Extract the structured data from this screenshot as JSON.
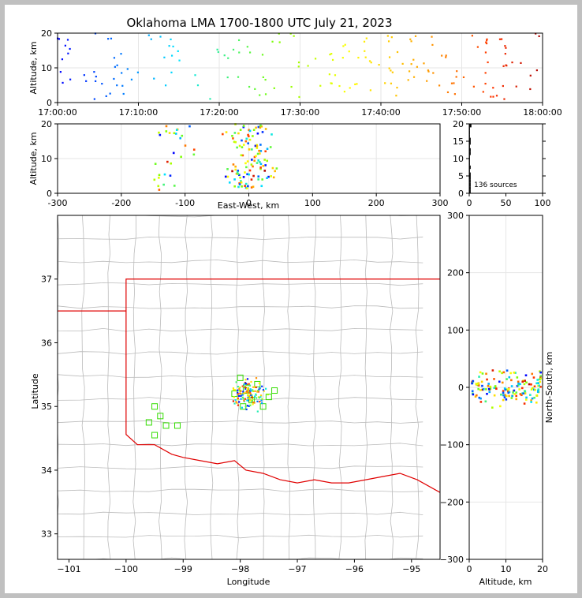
{
  "chart_data": [
    {
      "panel": "altitude-time",
      "type": "scatter",
      "title": "Oklahoma LMA 1700-1800 UTC July 21, 2023",
      "xlabel": "",
      "ylabel": "Altitude, km",
      "x_ticks": [
        "17:00:00",
        "17:10:00",
        "17:20:00",
        "17:30:00",
        "17:40:00",
        "17:50:00",
        "18:00:00"
      ],
      "y_ticks": [
        "0",
        "10",
        "20"
      ],
      "xlim_minutes": [
        0,
        60
      ],
      "ylim": [
        0,
        20
      ],
      "grid": true,
      "color_scale": "time (blue to red)"
    },
    {
      "panel": "altitude-east-west",
      "type": "scatter",
      "xlabel": "East-West, km",
      "ylabel": "Altitude, km",
      "x_ticks": [
        "-300",
        "-200",
        "-100",
        "0",
        "100",
        "200",
        "300"
      ],
      "y_ticks": [
        "0",
        "10",
        "20"
      ],
      "xlim": [
        -300,
        300
      ],
      "ylim": [
        0,
        20
      ],
      "grid": true
    },
    {
      "panel": "altitude-histogram",
      "type": "bar",
      "annotation": "136 sources",
      "x_ticks": [
        "0",
        "50",
        "100"
      ],
      "y_ticks": [
        "0",
        "5",
        "10",
        "15",
        "20"
      ],
      "xlim": [
        0,
        100
      ],
      "ylim": [
        0,
        20
      ]
    },
    {
      "panel": "plan-view-map",
      "type": "scatter",
      "xlabel": "Longitude",
      "ylabel": "Latitude",
      "x_ticks": [
        "−101",
        "−100",
        "−99",
        "−98",
        "−97",
        "−96",
        "−95"
      ],
      "y_ticks": [
        "33",
        "34",
        "35",
        "36",
        "37"
      ],
      "xlim": [
        -101.2,
        -94.5
      ],
      "ylim": [
        32.6,
        38.0
      ],
      "station_marker": "lime square"
    },
    {
      "panel": "north-south-altitude",
      "type": "scatter",
      "xlabel": "Altitude, km",
      "ylabel": "North-South, km",
      "x_ticks": [
        "0",
        "10",
        "20"
      ],
      "y_ticks": [
        "−300",
        "−200",
        "−100",
        "0",
        "100",
        "200",
        "300"
      ],
      "xlim": [
        0,
        20
      ],
      "ylim": [
        -300,
        300
      ],
      "grid": true
    }
  ]
}
